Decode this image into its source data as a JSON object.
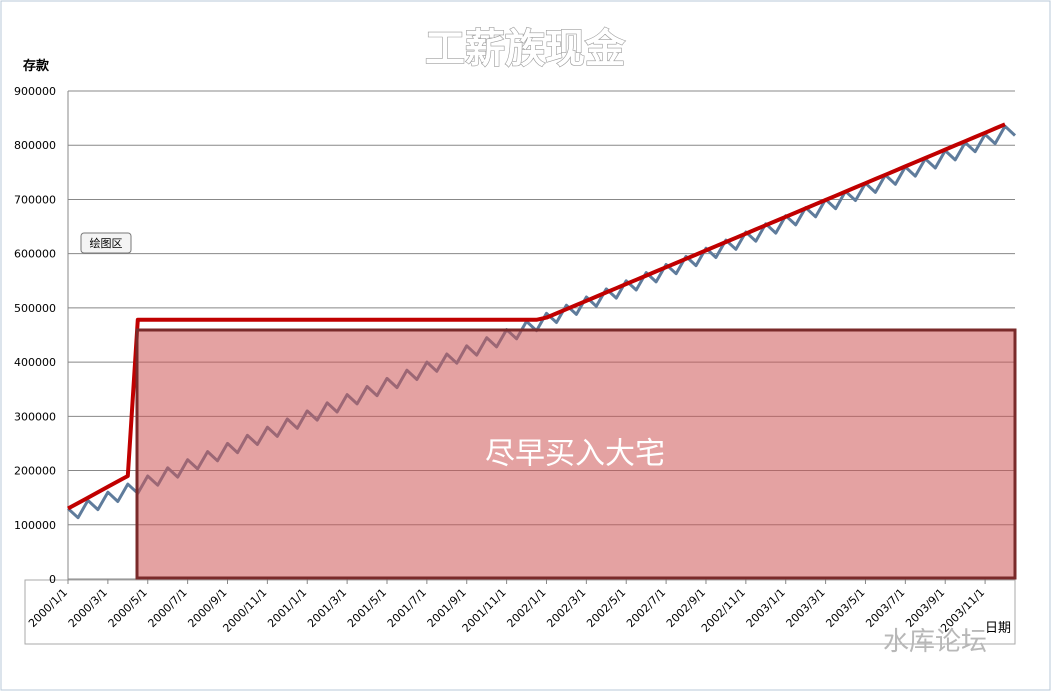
{
  "chart_data": {
    "type": "line",
    "title": "工薪族现金",
    "y_label": "存款",
    "x_label": "日期",
    "annotation": "尽早买入大宅",
    "tooltip": "绘图区",
    "watermark": "水库论坛",
    "ylim": [
      0,
      900000
    ],
    "yticks": [
      0,
      100000,
      200000,
      300000,
      400000,
      500000,
      600000,
      700000,
      800000,
      900000
    ],
    "grid": true,
    "categories": [
      "2000/1/1",
      null,
      null,
      null,
      "2000/3/1",
      null,
      null,
      null,
      "2000/5/1",
      null,
      null,
      null,
      "2000/7/1",
      null,
      null,
      null,
      "2000/9/1",
      null,
      null,
      null,
      "2000/11/1",
      null,
      null,
      null,
      "2001/1/1",
      null,
      null,
      null,
      "2001/3/1",
      null,
      null,
      null,
      "2001/5/1",
      null,
      null,
      null,
      "2001/7/1",
      null,
      null,
      null,
      "2001/9/1",
      null,
      null,
      null,
      "2001/11/1",
      null,
      null,
      null,
      "2002/1/1",
      null,
      null,
      null,
      "2002/3/1",
      null,
      null,
      null,
      "2002/5/1",
      null,
      null,
      null,
      "2002/7/1",
      null,
      null,
      null,
      "2002/9/1",
      null,
      null,
      null,
      "2002/11/1",
      null,
      null,
      null,
      "2003/1/1",
      null,
      null,
      null,
      "2003/3/1",
      null,
      null,
      null,
      "2003/5/1",
      null,
      null,
      null,
      "2003/7/1",
      null,
      null,
      null,
      "2003/9/1",
      null,
      null,
      null,
      "2003/11/1",
      null,
      null,
      null
    ],
    "series": [
      {
        "color": "#5f7c9c",
        "values": [
          130000,
          113000,
          145000,
          128000,
          160000,
          143000,
          175000,
          158000,
          190000,
          173000,
          205000,
          188000,
          220000,
          203000,
          235000,
          218000,
          250000,
          233000,
          265000,
          248000,
          280000,
          263000,
          295000,
          278000,
          310000,
          293000,
          325000,
          308000,
          340000,
          323000,
          355000,
          338000,
          370000,
          353000,
          385000,
          368000,
          400000,
          383000,
          415000,
          398000,
          430000,
          413000,
          445000,
          428000,
          460000,
          443000,
          475000,
          458000,
          490000,
          473000,
          505000,
          488000,
          520000,
          503000,
          535000,
          518000,
          550000,
          533000,
          565000,
          548000,
          580000,
          563000,
          595000,
          578000,
          610000,
          593000,
          625000,
          608000,
          640000,
          623000,
          655000,
          638000,
          670000,
          653000,
          685000,
          668000,
          700000,
          683000,
          715000,
          698000,
          730000,
          713000,
          745000,
          728000,
          760000,
          743000,
          775000,
          758000,
          790000,
          773000,
          805000,
          788000,
          820000,
          803000,
          835000,
          818000
        ]
      },
      {
        "color": "#c00000",
        "values": [
          130000,
          140000,
          150000,
          160000,
          170000,
          180000,
          190000,
          478000,
          478000,
          478000,
          478000,
          478000,
          478000,
          478000,
          478000,
          478000,
          478000,
          478000,
          478000,
          478000,
          478000,
          478000,
          478000,
          478000,
          478000,
          478000,
          478000,
          478000,
          478000,
          478000,
          478000,
          478000,
          478000,
          478000,
          478000,
          478000,
          478000,
          478000,
          478000,
          478000,
          478000,
          478000,
          478000,
          478000,
          478000,
          478000,
          478000,
          478000,
          482000,
          489750,
          497500,
          505250,
          513000,
          520750,
          528500,
          536250,
          544000,
          551750,
          559500,
          567250,
          575000,
          582750,
          590500,
          598250,
          606000,
          613750,
          621500,
          629250,
          637000,
          644750,
          652500,
          660250,
          668000,
          675750,
          683500,
          691250,
          699000,
          706750,
          714500,
          722250,
          730000,
          737750,
          745500,
          753250,
          761000,
          768750,
          776500,
          784250,
          792000,
          799750,
          807500,
          815250,
          823000,
          830750,
          838500,
          null
        ]
      }
    ]
  }
}
